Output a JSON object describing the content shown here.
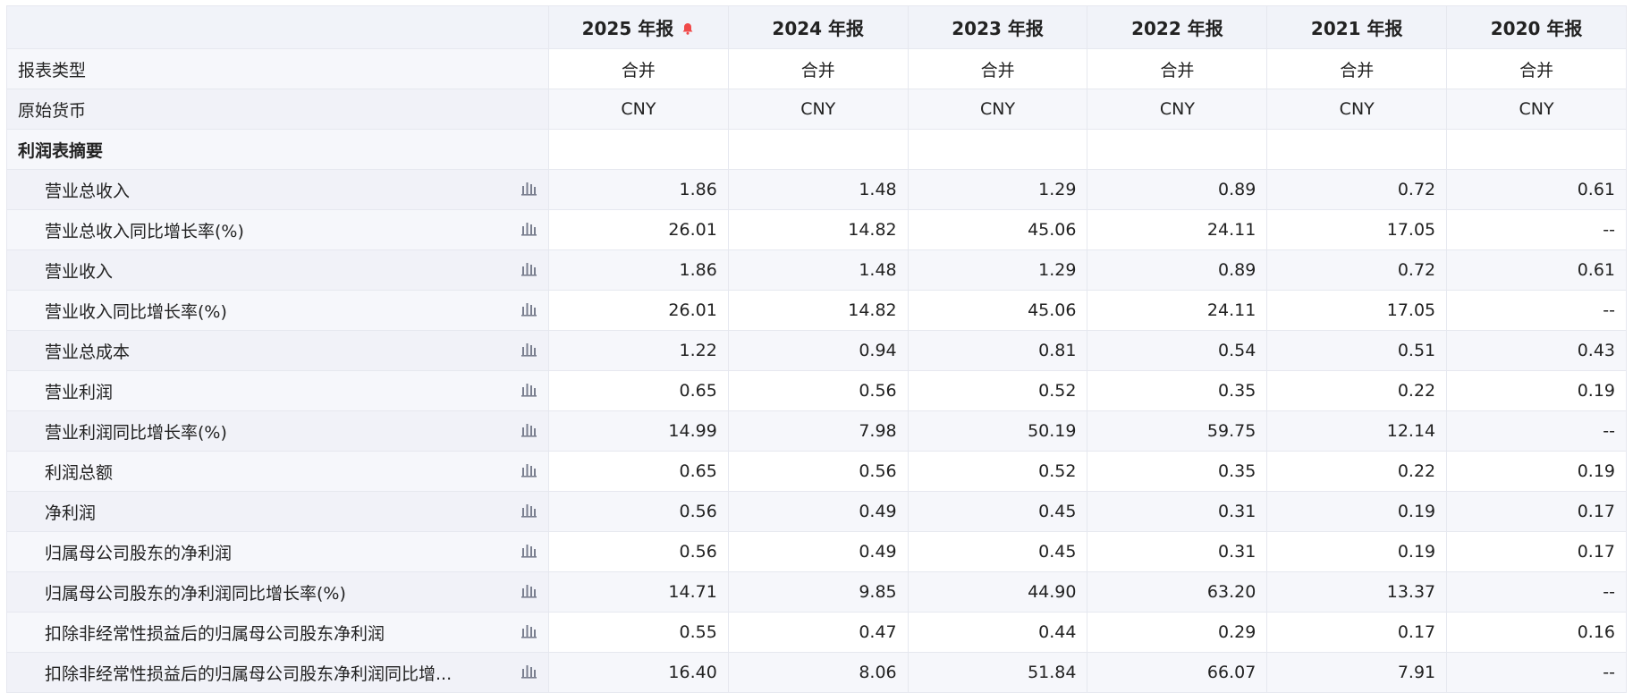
{
  "header": {
    "columns": [
      "2025 年报",
      "2024 年报",
      "2023 年报",
      "2022 年报",
      "2021 年报",
      "2020 年报"
    ]
  },
  "info_rows": [
    {
      "label": "报表类型",
      "cells": [
        "合并",
        "合并",
        "合并",
        "合并",
        "合并",
        "合并"
      ]
    },
    {
      "label": "原始货币",
      "cells": [
        "CNY",
        "CNY",
        "CNY",
        "CNY",
        "CNY",
        "CNY"
      ]
    }
  ],
  "section": {
    "title": "利润表摘要",
    "rows": [
      {
        "label": "营业总收入",
        "values": [
          "1.86",
          "1.48",
          "1.29",
          "0.89",
          "0.72",
          "0.61"
        ]
      },
      {
        "label": "营业总收入同比增长率(%)",
        "values": [
          "26.01",
          "14.82",
          "45.06",
          "24.11",
          "17.05",
          "--"
        ]
      },
      {
        "label": "营业收入",
        "values": [
          "1.86",
          "1.48",
          "1.29",
          "0.89",
          "0.72",
          "0.61"
        ]
      },
      {
        "label": "营业收入同比增长率(%)",
        "values": [
          "26.01",
          "14.82",
          "45.06",
          "24.11",
          "17.05",
          "--"
        ]
      },
      {
        "label": "营业总成本",
        "values": [
          "1.22",
          "0.94",
          "0.81",
          "0.54",
          "0.51",
          "0.43"
        ]
      },
      {
        "label": "营业利润",
        "values": [
          "0.65",
          "0.56",
          "0.52",
          "0.35",
          "0.22",
          "0.19"
        ]
      },
      {
        "label": "营业利润同比增长率(%)",
        "values": [
          "14.99",
          "7.98",
          "50.19",
          "59.75",
          "12.14",
          "--"
        ]
      },
      {
        "label": "利润总额",
        "values": [
          "0.65",
          "0.56",
          "0.52",
          "0.35",
          "0.22",
          "0.19"
        ]
      },
      {
        "label": "净利润",
        "values": [
          "0.56",
          "0.49",
          "0.45",
          "0.31",
          "0.19",
          "0.17"
        ]
      },
      {
        "label": "归属母公司股东的净利润",
        "values": [
          "0.56",
          "0.49",
          "0.45",
          "0.31",
          "0.19",
          "0.17"
        ]
      },
      {
        "label": "归属母公司股东的净利润同比增长率(%)",
        "values": [
          "14.71",
          "9.85",
          "44.90",
          "63.20",
          "13.37",
          "--"
        ]
      },
      {
        "label": "扣除非经常性损益后的归属母公司股东净利润",
        "values": [
          "0.55",
          "0.47",
          "0.44",
          "0.29",
          "0.17",
          "0.16"
        ]
      },
      {
        "label": "扣除非经常性损益后的归属母公司股东净利润同比增...",
        "values": [
          "16.40",
          "8.06",
          "51.84",
          "66.07",
          "7.91",
          "--"
        ]
      }
    ]
  }
}
